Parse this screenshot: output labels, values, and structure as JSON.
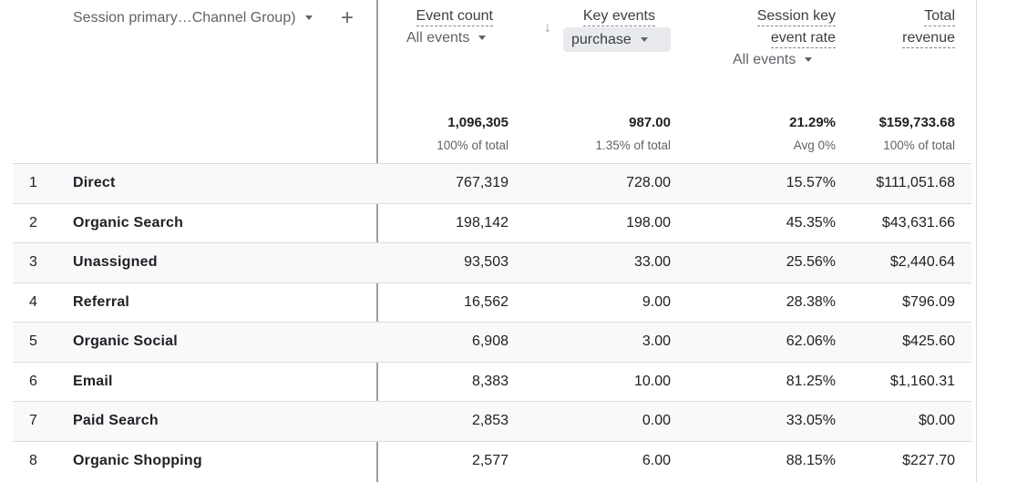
{
  "dimension": {
    "label": "Session primary…Channel Group)",
    "add_icon": "plus-icon"
  },
  "columns": [
    {
      "title": "Event count",
      "filter": "All events",
      "total": "1,096,305",
      "total_sub": "100% of total"
    },
    {
      "title": "Key events",
      "filter": "purchase",
      "total": "987.00",
      "total_sub": "1.35% of total",
      "sorted": "descending"
    },
    {
      "title_line1": "Session key",
      "title_line2": "event rate",
      "filter": "All events",
      "total": "21.29%",
      "total_sub": "Avg 0%"
    },
    {
      "title_line1": "Total",
      "title_line2": "revenue",
      "total": "$159,733.68",
      "total_sub": "100% of total"
    }
  ],
  "rows": [
    {
      "idx": "1",
      "name": "Direct",
      "event_count": "767,319",
      "key_events": "728.00",
      "rate": "15.57%",
      "revenue": "$111,051.68"
    },
    {
      "idx": "2",
      "name": "Organic Search",
      "event_count": "198,142",
      "key_events": "198.00",
      "rate": "45.35%",
      "revenue": "$43,631.66"
    },
    {
      "idx": "3",
      "name": "Unassigned",
      "event_count": "93,503",
      "key_events": "33.00",
      "rate": "25.56%",
      "revenue": "$2,440.64"
    },
    {
      "idx": "4",
      "name": "Referral",
      "event_count": "16,562",
      "key_events": "9.00",
      "rate": "28.38%",
      "revenue": "$796.09"
    },
    {
      "idx": "5",
      "name": "Organic Social",
      "event_count": "6,908",
      "key_events": "3.00",
      "rate": "62.06%",
      "revenue": "$425.60"
    },
    {
      "idx": "6",
      "name": "Email",
      "event_count": "8,383",
      "key_events": "10.00",
      "rate": "81.25%",
      "revenue": "$1,160.31"
    },
    {
      "idx": "7",
      "name": "Paid Search",
      "event_count": "2,853",
      "key_events": "0.00",
      "rate": "33.05%",
      "revenue": "$0.00"
    },
    {
      "idx": "8",
      "name": "Organic Shopping",
      "event_count": "2,577",
      "key_events": "6.00",
      "rate": "88.15%",
      "revenue": "$227.70"
    }
  ]
}
